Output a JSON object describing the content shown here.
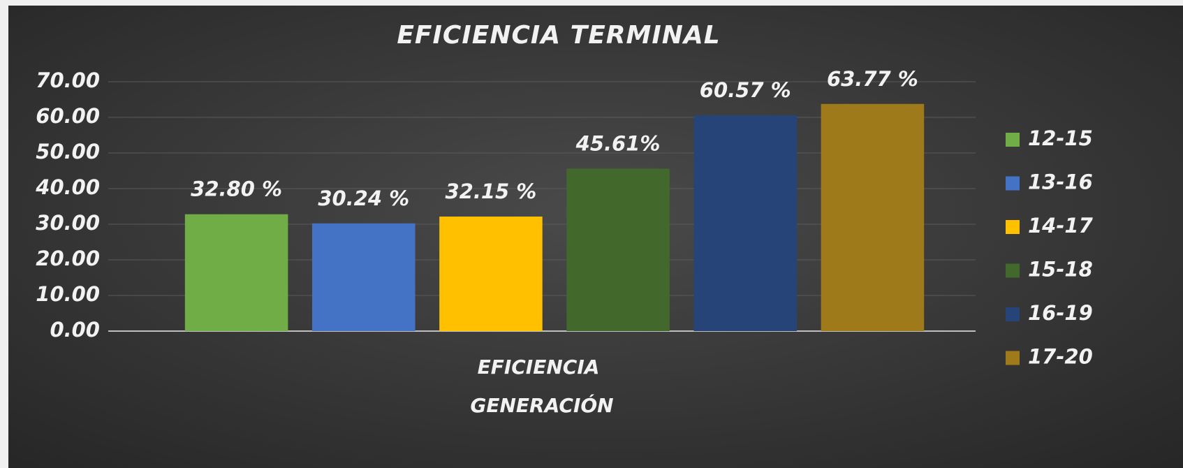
{
  "chart_data": {
    "type": "bar",
    "title": "EFICIENCIA TERMINAL",
    "categories": [
      "EFICIENCIA"
    ],
    "x_label": "GENERACIÓN",
    "series": [
      {
        "name": "12-15",
        "color": "#70ad47",
        "values": [
          32.8
        ],
        "value_labels": [
          "32.80 %"
        ]
      },
      {
        "name": "13-16",
        "color": "#4472c4",
        "values": [
          30.24
        ],
        "value_labels": [
          "30.24 %"
        ]
      },
      {
        "name": "14-17",
        "color": "#ffc000",
        "values": [
          32.15
        ],
        "value_labels": [
          "32.15 %"
        ]
      },
      {
        "name": "15-18",
        "color": "#43682b",
        "values": [
          45.61
        ],
        "value_labels": [
          "45.61%"
        ]
      },
      {
        "name": "16-19",
        "color": "#264478",
        "values": [
          60.57
        ],
        "value_labels": [
          "60.57 %"
        ]
      },
      {
        "name": "17-20",
        "color": "#9e7a1a",
        "values": [
          63.77
        ],
        "value_labels": [
          "63.77 %"
        ]
      }
    ],
    "ylim": [
      0,
      70
    ],
    "yticks": [
      {
        "value": 0,
        "label": "0.00"
      },
      {
        "value": 10,
        "label": "10.00"
      },
      {
        "value": 20,
        "label": "20.00"
      },
      {
        "value": 30,
        "label": "30.00"
      },
      {
        "value": 40,
        "label": "40.00"
      },
      {
        "value": 50,
        "label": "50.00"
      },
      {
        "value": 60,
        "label": "60.00"
      },
      {
        "value": 70,
        "label": "70.00"
      }
    ],
    "grid": true,
    "legend": "right"
  }
}
